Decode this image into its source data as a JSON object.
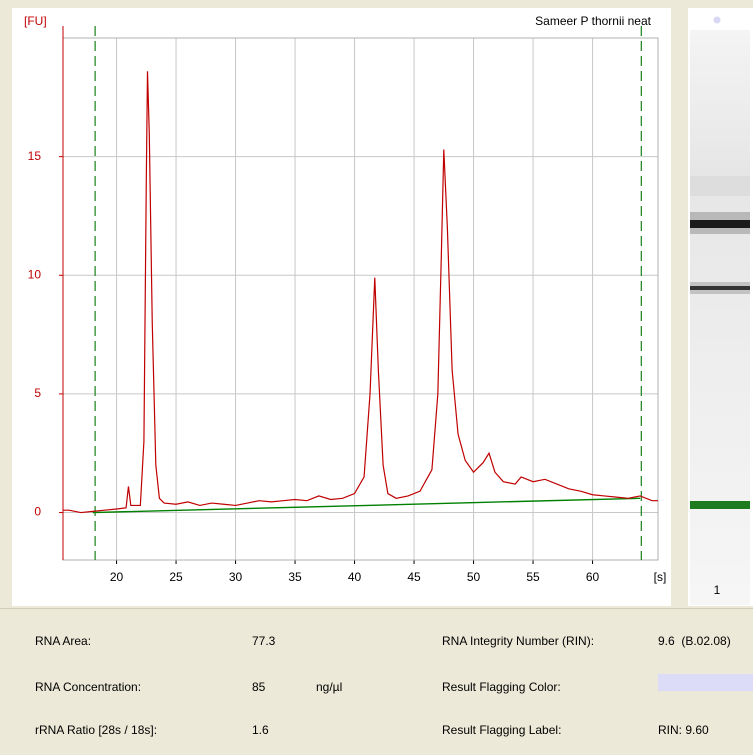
{
  "chart_data": {
    "type": "line",
    "title": "Sameer P thornii neat",
    "y_label": "[FU]",
    "x_label": "[s]",
    "xlim": [
      15.5,
      65.5
    ],
    "xticks": [
      20,
      25,
      30,
      35,
      40,
      45,
      50,
      55,
      60
    ],
    "ylim": [
      -2,
      20
    ],
    "yticks": [
      0,
      5,
      10,
      15
    ],
    "grid": true,
    "axis_color": "#c00000",
    "markers": [
      18.2,
      64.1
    ],
    "marker_color": "#2a8a2a",
    "series": [
      {
        "color": "#c00000",
        "x": [
          15.5,
          16,
          17,
          18,
          19,
          20,
          20.8,
          21,
          21.2,
          22,
          22.3,
          22.5,
          22.6,
          22.75,
          23,
          23.3,
          23.6,
          24,
          25,
          26,
          27,
          28,
          29,
          30,
          31,
          32,
          33,
          34,
          35,
          36,
          37,
          38,
          39,
          40,
          40.8,
          41.3,
          41.7,
          42,
          42.4,
          42.8,
          43.5,
          44.5,
          45.5,
          46.5,
          47,
          47.3,
          47.5,
          47.8,
          48.2,
          48.7,
          49.3,
          50,
          50.8,
          51.3,
          51.8,
          52.5,
          53.5,
          54,
          55,
          56,
          57,
          58,
          59,
          60,
          61,
          62,
          63,
          64,
          65,
          65.5
        ],
        "values": [
          0.1,
          0.1,
          0.0,
          0.05,
          0.1,
          0.15,
          0.2,
          1.1,
          0.3,
          0.3,
          3,
          14,
          18.6,
          16,
          8,
          2,
          0.6,
          0.4,
          0.35,
          0.45,
          0.3,
          0.4,
          0.35,
          0.3,
          0.4,
          0.5,
          0.45,
          0.5,
          0.55,
          0.5,
          0.7,
          0.55,
          0.6,
          0.8,
          1.5,
          5,
          9.9,
          6,
          2,
          0.8,
          0.6,
          0.7,
          0.9,
          1.8,
          5,
          11,
          15.3,
          12,
          6,
          3.3,
          2.2,
          1.7,
          2.1,
          2.5,
          1.7,
          1.3,
          1.2,
          1.5,
          1.3,
          1.4,
          1.2,
          1.0,
          0.9,
          0.75,
          0.7,
          0.65,
          0.6,
          0.7,
          0.5,
          0.5
        ]
      },
      {
        "color": "#008000",
        "x": [
          18,
          64
        ],
        "values": [
          0,
          0.6
        ]
      }
    ]
  },
  "gel": {
    "lane": "1"
  },
  "info": {
    "left": [
      {
        "label": "RNA Area:",
        "value": "77.3"
      },
      {
        "label": "RNA Concentration:",
        "value": "85",
        "unit": "ng/µl"
      },
      {
        "label": "rRNA Ratio [28s / 18s]:",
        "value": "1.6"
      }
    ],
    "right": [
      {
        "label": "RNA Integrity Number (RIN):",
        "value": "9.6  (B.02.08)"
      },
      {
        "label": "Result Flagging Color:"
      },
      {
        "label": "Result Flagging Label:",
        "value": "RIN: 9.60"
      }
    ]
  }
}
